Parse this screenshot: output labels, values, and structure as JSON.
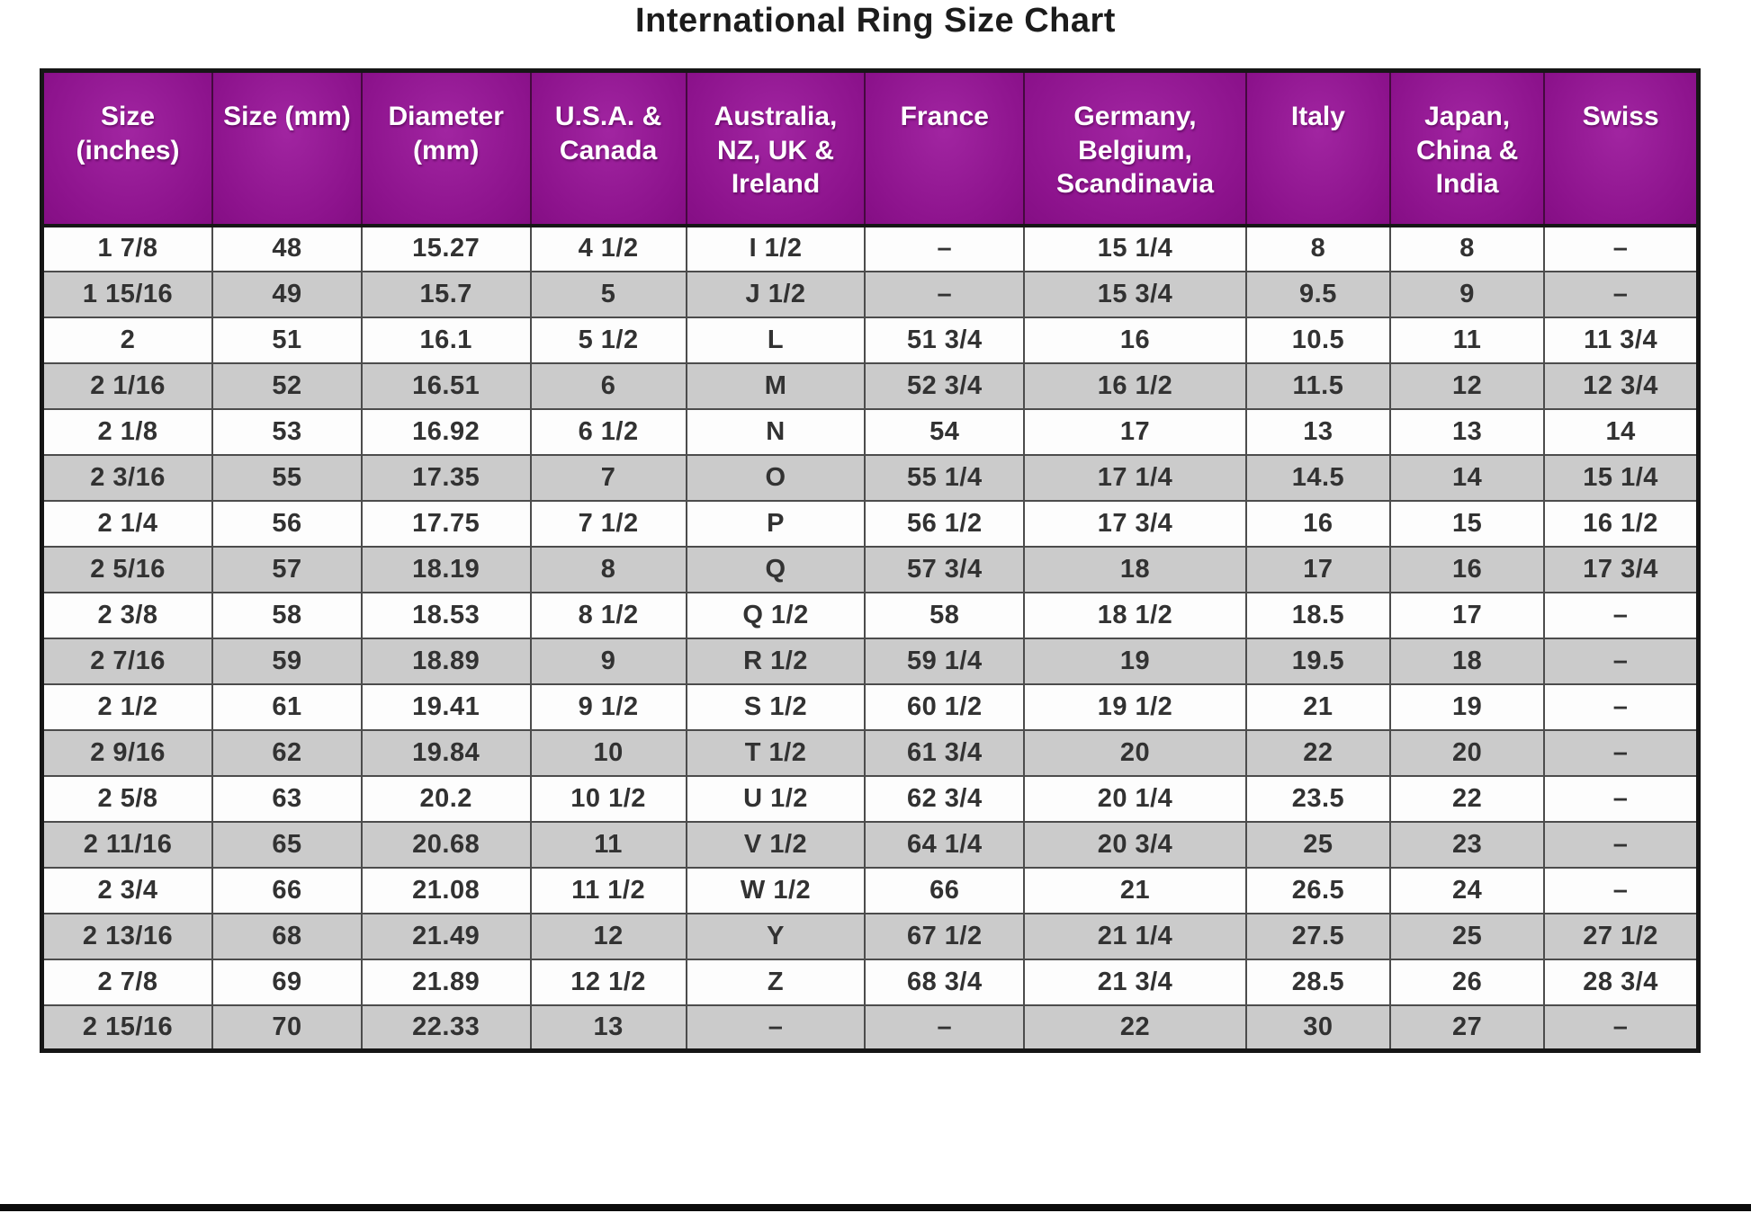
{
  "page": {
    "title": "International Ring Size Chart"
  },
  "colors": {
    "header_bg": "#8d138d",
    "header_text": "#ffffff",
    "row_bg": "#fdfdfd",
    "row_alt_bg": "#cbcbcb",
    "grid_line": "#4c4c4c",
    "outer_border": "#161616",
    "body_text": "#323232"
  },
  "chart_data": {
    "type": "table",
    "title": "International Ring Size Chart",
    "columns": [
      "Size (inches)",
      "Size (mm)",
      "Diameter (mm)",
      "U.S.A. & Canada",
      "Australia, NZ, UK & Ireland",
      "France",
      "Germany, Belgium, Scandinavia",
      "Italy",
      "Japan, China & India",
      "Swiss"
    ],
    "rows": [
      [
        "1 7/8",
        "48",
        "15.27",
        "4 1/2",
        "I 1/2",
        "–",
        "15 1/4",
        "8",
        "8",
        "–"
      ],
      [
        "1 15/16",
        "49",
        "15.7",
        "5",
        "J 1/2",
        "–",
        "15 3/4",
        "9.5",
        "9",
        "–"
      ],
      [
        "2",
        "51",
        "16.1",
        "5 1/2",
        "L",
        "51 3/4",
        "16",
        "10.5",
        "11",
        "11 3/4"
      ],
      [
        "2 1/16",
        "52",
        "16.51",
        "6",
        "M",
        "52 3/4",
        "16 1/2",
        "11.5",
        "12",
        "12 3/4"
      ],
      [
        "2 1/8",
        "53",
        "16.92",
        "6 1/2",
        "N",
        "54",
        "17",
        "13",
        "13",
        "14"
      ],
      [
        "2 3/16",
        "55",
        "17.35",
        "7",
        "O",
        "55 1/4",
        "17 1/4",
        "14.5",
        "14",
        "15 1/4"
      ],
      [
        "2 1/4",
        "56",
        "17.75",
        "7 1/2",
        "P",
        "56 1/2",
        "17 3/4",
        "16",
        "15",
        "16 1/2"
      ],
      [
        "2 5/16",
        "57",
        "18.19",
        "8",
        "Q",
        "57 3/4",
        "18",
        "17",
        "16",
        "17 3/4"
      ],
      [
        "2 3/8",
        "58",
        "18.53",
        "8 1/2",
        "Q 1/2",
        "58",
        "18 1/2",
        "18.5",
        "17",
        "–"
      ],
      [
        "2 7/16",
        "59",
        "18.89",
        "9",
        "R 1/2",
        "59 1/4",
        "19",
        "19.5",
        "18",
        "–"
      ],
      [
        "2 1/2",
        "61",
        "19.41",
        "9 1/2",
        "S 1/2",
        "60 1/2",
        "19 1/2",
        "21",
        "19",
        "–"
      ],
      [
        "2 9/16",
        "62",
        "19.84",
        "10",
        "T 1/2",
        "61 3/4",
        "20",
        "22",
        "20",
        "–"
      ],
      [
        "2 5/8",
        "63",
        "20.2",
        "10 1/2",
        "U 1/2",
        "62 3/4",
        "20 1/4",
        "23.5",
        "22",
        "–"
      ],
      [
        "2 11/16",
        "65",
        "20.68",
        "11",
        "V 1/2",
        "64 1/4",
        "20 3/4",
        "25",
        "23",
        "–"
      ],
      [
        "2 3/4",
        "66",
        "21.08",
        "11 1/2",
        "W 1/2",
        "66",
        "21",
        "26.5",
        "24",
        "–"
      ],
      [
        "2 13/16",
        "68",
        "21.49",
        "12",
        "Y",
        "67 1/2",
        "21 1/4",
        "27.5",
        "25",
        "27 1/2"
      ],
      [
        "2 7/8",
        "69",
        "21.89",
        "12 1/2",
        "Z",
        "68 3/4",
        "21 3/4",
        "28.5",
        "26",
        "28 3/4"
      ],
      [
        "2 15/16",
        "70",
        "22.33",
        "13",
        "–",
        "–",
        "22",
        "30",
        "27",
        "–"
      ]
    ]
  }
}
